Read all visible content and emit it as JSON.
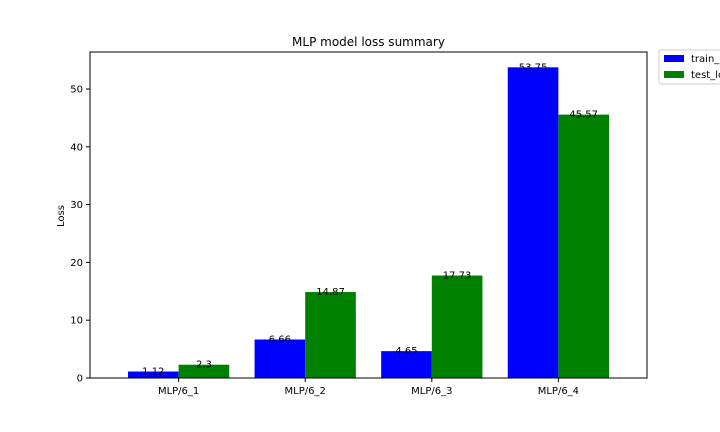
{
  "chart_data": {
    "type": "bar",
    "title": "MLP model loss summary",
    "xlabel": "",
    "ylabel": "Loss",
    "categories": [
      "MLP/6_1",
      "MLP/6_2",
      "MLP/6_3",
      "MLP/6_4"
    ],
    "series": [
      {
        "name": "train_loss",
        "color": "#0000ff",
        "values": [
          1.12,
          6.66,
          4.65,
          53.75
        ]
      },
      {
        "name": "test_loss",
        "color": "#008000",
        "values": [
          2.3,
          14.87,
          17.73,
          45.57
        ]
      }
    ],
    "ylim": [
      0,
      56.4
    ],
    "yticks": [
      0,
      10,
      20,
      30,
      40,
      50
    ],
    "grid": false,
    "legend_position": "outside-top-right",
    "data_labels": true
  }
}
